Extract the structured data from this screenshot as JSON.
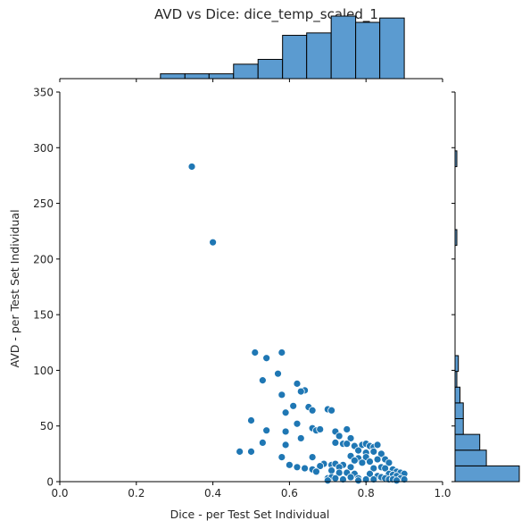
{
  "figure": {
    "title": "AVD vs Dice: dice_temp_scaled_1"
  },
  "chart_data": {
    "type": "scatter",
    "title": "AVD vs Dice: dice_temp_scaled_1",
    "xlabel": "Dice - per Test Set Individual",
    "ylabel": "AVD - per Test Set Individual",
    "xlim": [
      0.0,
      1.0
    ],
    "ylim": [
      0,
      350
    ],
    "xticks": [
      "0.0",
      "0.2",
      "0.4",
      "0.6",
      "0.8",
      "1.0"
    ],
    "yticks": [
      "0",
      "50",
      "100",
      "150",
      "200",
      "250",
      "300",
      "350"
    ],
    "grid": false,
    "colors": {
      "marker": "#1f77b4",
      "hist_fill": "#5b9bd0",
      "edge": "#000000"
    },
    "points": [
      [
        0.345,
        283
      ],
      [
        0.4,
        215
      ],
      [
        0.51,
        116
      ],
      [
        0.58,
        116
      ],
      [
        0.54,
        111
      ],
      [
        0.62,
        88
      ],
      [
        0.64,
        82
      ],
      [
        0.63,
        81
      ],
      [
        0.57,
        97
      ],
      [
        0.53,
        91
      ],
      [
        0.58,
        78
      ],
      [
        0.61,
        68
      ],
      [
        0.59,
        62
      ],
      [
        0.65,
        67
      ],
      [
        0.66,
        64
      ],
      [
        0.7,
        65
      ],
      [
        0.71,
        64
      ],
      [
        0.5,
        55
      ],
      [
        0.54,
        46
      ],
      [
        0.59,
        45
      ],
      [
        0.62,
        52
      ],
      [
        0.66,
        48
      ],
      [
        0.67,
        46
      ],
      [
        0.68,
        47
      ],
      [
        0.72,
        45
      ],
      [
        0.75,
        47
      ],
      [
        0.76,
        39
      ],
      [
        0.73,
        41
      ],
      [
        0.63,
        39
      ],
      [
        0.53,
        35
      ],
      [
        0.59,
        33
      ],
      [
        0.72,
        35
      ],
      [
        0.74,
        34
      ],
      [
        0.75,
        34
      ],
      [
        0.77,
        32
      ],
      [
        0.79,
        33
      ],
      [
        0.8,
        34
      ],
      [
        0.81,
        32
      ],
      [
        0.82,
        31
      ],
      [
        0.83,
        33
      ],
      [
        0.78,
        28
      ],
      [
        0.8,
        26
      ],
      [
        0.82,
        27
      ],
      [
        0.84,
        25
      ],
      [
        0.47,
        27
      ],
      [
        0.5,
        27
      ],
      [
        0.58,
        22
      ],
      [
        0.66,
        22
      ],
      [
        0.76,
        23
      ],
      [
        0.78,
        21
      ],
      [
        0.8,
        22
      ],
      [
        0.85,
        20
      ],
      [
        0.77,
        19
      ],
      [
        0.79,
        17
      ],
      [
        0.81,
        18
      ],
      [
        0.83,
        20
      ],
      [
        0.86,
        17
      ],
      [
        0.6,
        15
      ],
      [
        0.62,
        13
      ],
      [
        0.64,
        12
      ],
      [
        0.69,
        16
      ],
      [
        0.71,
        15
      ],
      [
        0.72,
        16
      ],
      [
        0.74,
        15
      ],
      [
        0.68,
        14
      ],
      [
        0.73,
        13
      ],
      [
        0.76,
        13
      ],
      [
        0.82,
        12
      ],
      [
        0.84,
        13
      ],
      [
        0.85,
        12
      ],
      [
        0.87,
        11
      ],
      [
        0.88,
        9
      ],
      [
        0.89,
        8
      ],
      [
        0.9,
        7
      ],
      [
        0.66,
        11
      ],
      [
        0.67,
        9
      ],
      [
        0.71,
        10
      ],
      [
        0.73,
        8
      ],
      [
        0.75,
        8
      ],
      [
        0.77,
        7
      ],
      [
        0.81,
        7
      ],
      [
        0.86,
        7
      ],
      [
        0.87,
        6
      ],
      [
        0.88,
        5
      ],
      [
        0.83,
        5
      ],
      [
        0.84,
        4
      ],
      [
        0.85,
        3
      ],
      [
        0.86,
        2
      ],
      [
        0.87,
        2
      ],
      [
        0.89,
        3
      ],
      [
        0.9,
        2
      ],
      [
        0.88,
        1
      ],
      [
        0.7,
        3
      ],
      [
        0.71,
        4
      ],
      [
        0.72,
        3
      ],
      [
        0.74,
        2
      ],
      [
        0.76,
        4
      ],
      [
        0.78,
        3
      ],
      [
        0.8,
        2
      ],
      [
        0.82,
        2
      ],
      [
        0.7,
        1
      ],
      [
        0.78,
        1
      ]
    ],
    "x_hist": {
      "bin_edges": [
        0.263,
        0.327,
        0.39,
        0.454,
        0.518,
        0.582,
        0.645,
        0.709,
        0.773,
        0.836,
        0.9
      ],
      "counts": [
        1,
        1,
        1,
        3,
        4,
        9,
        9.5,
        13,
        11.7,
        12.6
      ]
    },
    "y_hist": {
      "bin_edges": [
        0,
        14.15,
        28.3,
        42.45,
        56.6,
        70.75,
        84.9,
        99.05,
        113.2,
        127.35,
        141.5,
        155.65,
        169.8,
        183.95,
        198.1,
        212.25,
        226.4,
        240.55,
        254.7,
        268.85,
        283,
        297.15
      ],
      "counts": [
        39,
        19,
        15,
        5,
        5,
        3,
        1,
        2,
        0,
        0,
        0,
        0,
        0,
        0,
        0,
        1,
        0,
        0,
        0,
        0,
        1
      ]
    }
  }
}
